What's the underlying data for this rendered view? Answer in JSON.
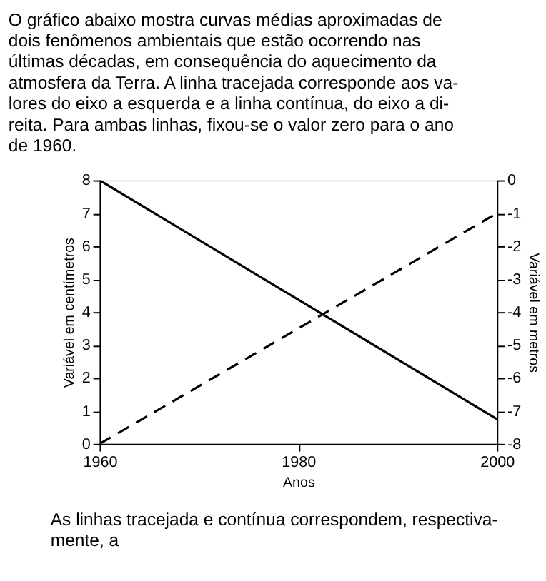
{
  "chart_data": {
    "type": "line",
    "title": "O gráfico abaixo mostra curvas médias aproximadas de\ndois fenômenos ambientais que estão ocorrendo nas\núltimas décadas, em consequência do aquecimento da\natmosfera da Terra. A linha tracejada corresponde aos va-\nlores do eixo a esquerda e a linha contínua, do eixo a di-\nreita. Para ambas linhas, fixou-se o valor zero para o ano\nde 1960.",
    "xlabel": "Anos",
    "ylabel": "Variável em centímetros",
    "y2label": "Variável em metros",
    "x": [
      1960,
      2000
    ],
    "series": [
      {
        "color": "#000000",
        "values": [
          0,
          7
        ],
        "line_style": "dashed"
      },
      {
        "color": "#000000",
        "values": [
          0,
          -7.25
        ],
        "axis": "y2",
        "line_style": "solid"
      }
    ],
    "xlim": [
      1960,
      2000
    ],
    "xticks": [
      1960,
      1980,
      2000
    ],
    "ylim": [
      0,
      8
    ],
    "yticks": [
      0,
      1,
      2,
      3,
      4,
      5,
      6,
      7,
      8
    ],
    "y2lim": [
      -8,
      0
    ],
    "y2ticks": [
      -8,
      -7,
      -6,
      -5,
      -4,
      -3,
      -2,
      -1,
      0
    ],
    "grid": false,
    "marker": "none",
    "annotations": [
      "As linhas tracejada e contínua correspondem, respectiva-\nmente, a"
    ]
  }
}
